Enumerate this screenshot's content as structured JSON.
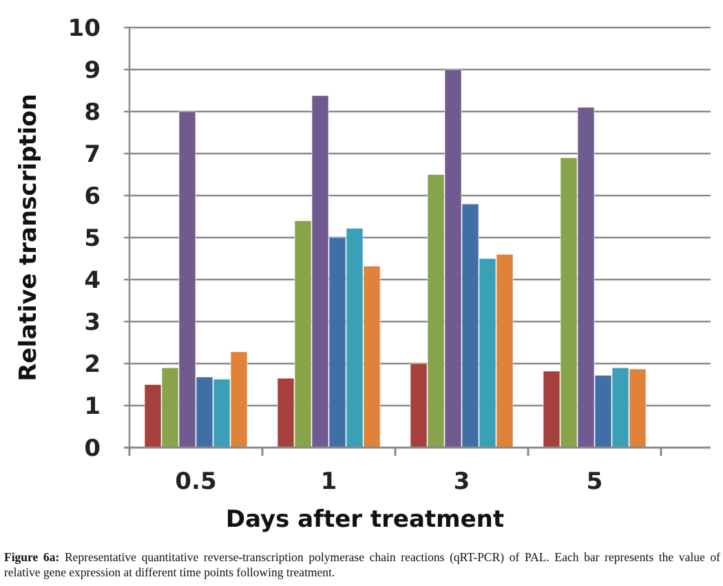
{
  "chart_data": {
    "type": "bar",
    "xlabel": "Days after treatment",
    "ylabel": "Relative transcription",
    "ylim": [
      0,
      10
    ],
    "yticks": [
      0,
      1,
      2,
      3,
      4,
      5,
      6,
      7,
      8,
      9,
      10
    ],
    "grid": true,
    "categories": [
      "0.5",
      "1",
      "3",
      "5"
    ],
    "series": [
      {
        "color": "#a5403c",
        "values": [
          1.5,
          1.65,
          2.0,
          1.82
        ]
      },
      {
        "color": "#88a44a",
        "values": [
          1.9,
          5.4,
          6.5,
          6.9
        ]
      },
      {
        "color": "#705a8f",
        "values": [
          8.0,
          8.38,
          9.0,
          8.1
        ]
      },
      {
        "color": "#3f6fa6",
        "values": [
          1.68,
          5.0,
          5.8,
          1.72
        ]
      },
      {
        "color": "#3aa0b8",
        "values": [
          1.63,
          5.22,
          4.5,
          1.9
        ]
      },
      {
        "color": "#e0823a",
        "values": [
          2.28,
          4.32,
          4.6,
          1.87
        ]
      }
    ]
  },
  "caption": {
    "label": "Figure 6a:",
    "text": "Representative quantitative reverse-transcription polymerase chain reactions (qRT-PCR) of PAL. Each bar represents the value of relative gene expression at different time points following treatment."
  }
}
